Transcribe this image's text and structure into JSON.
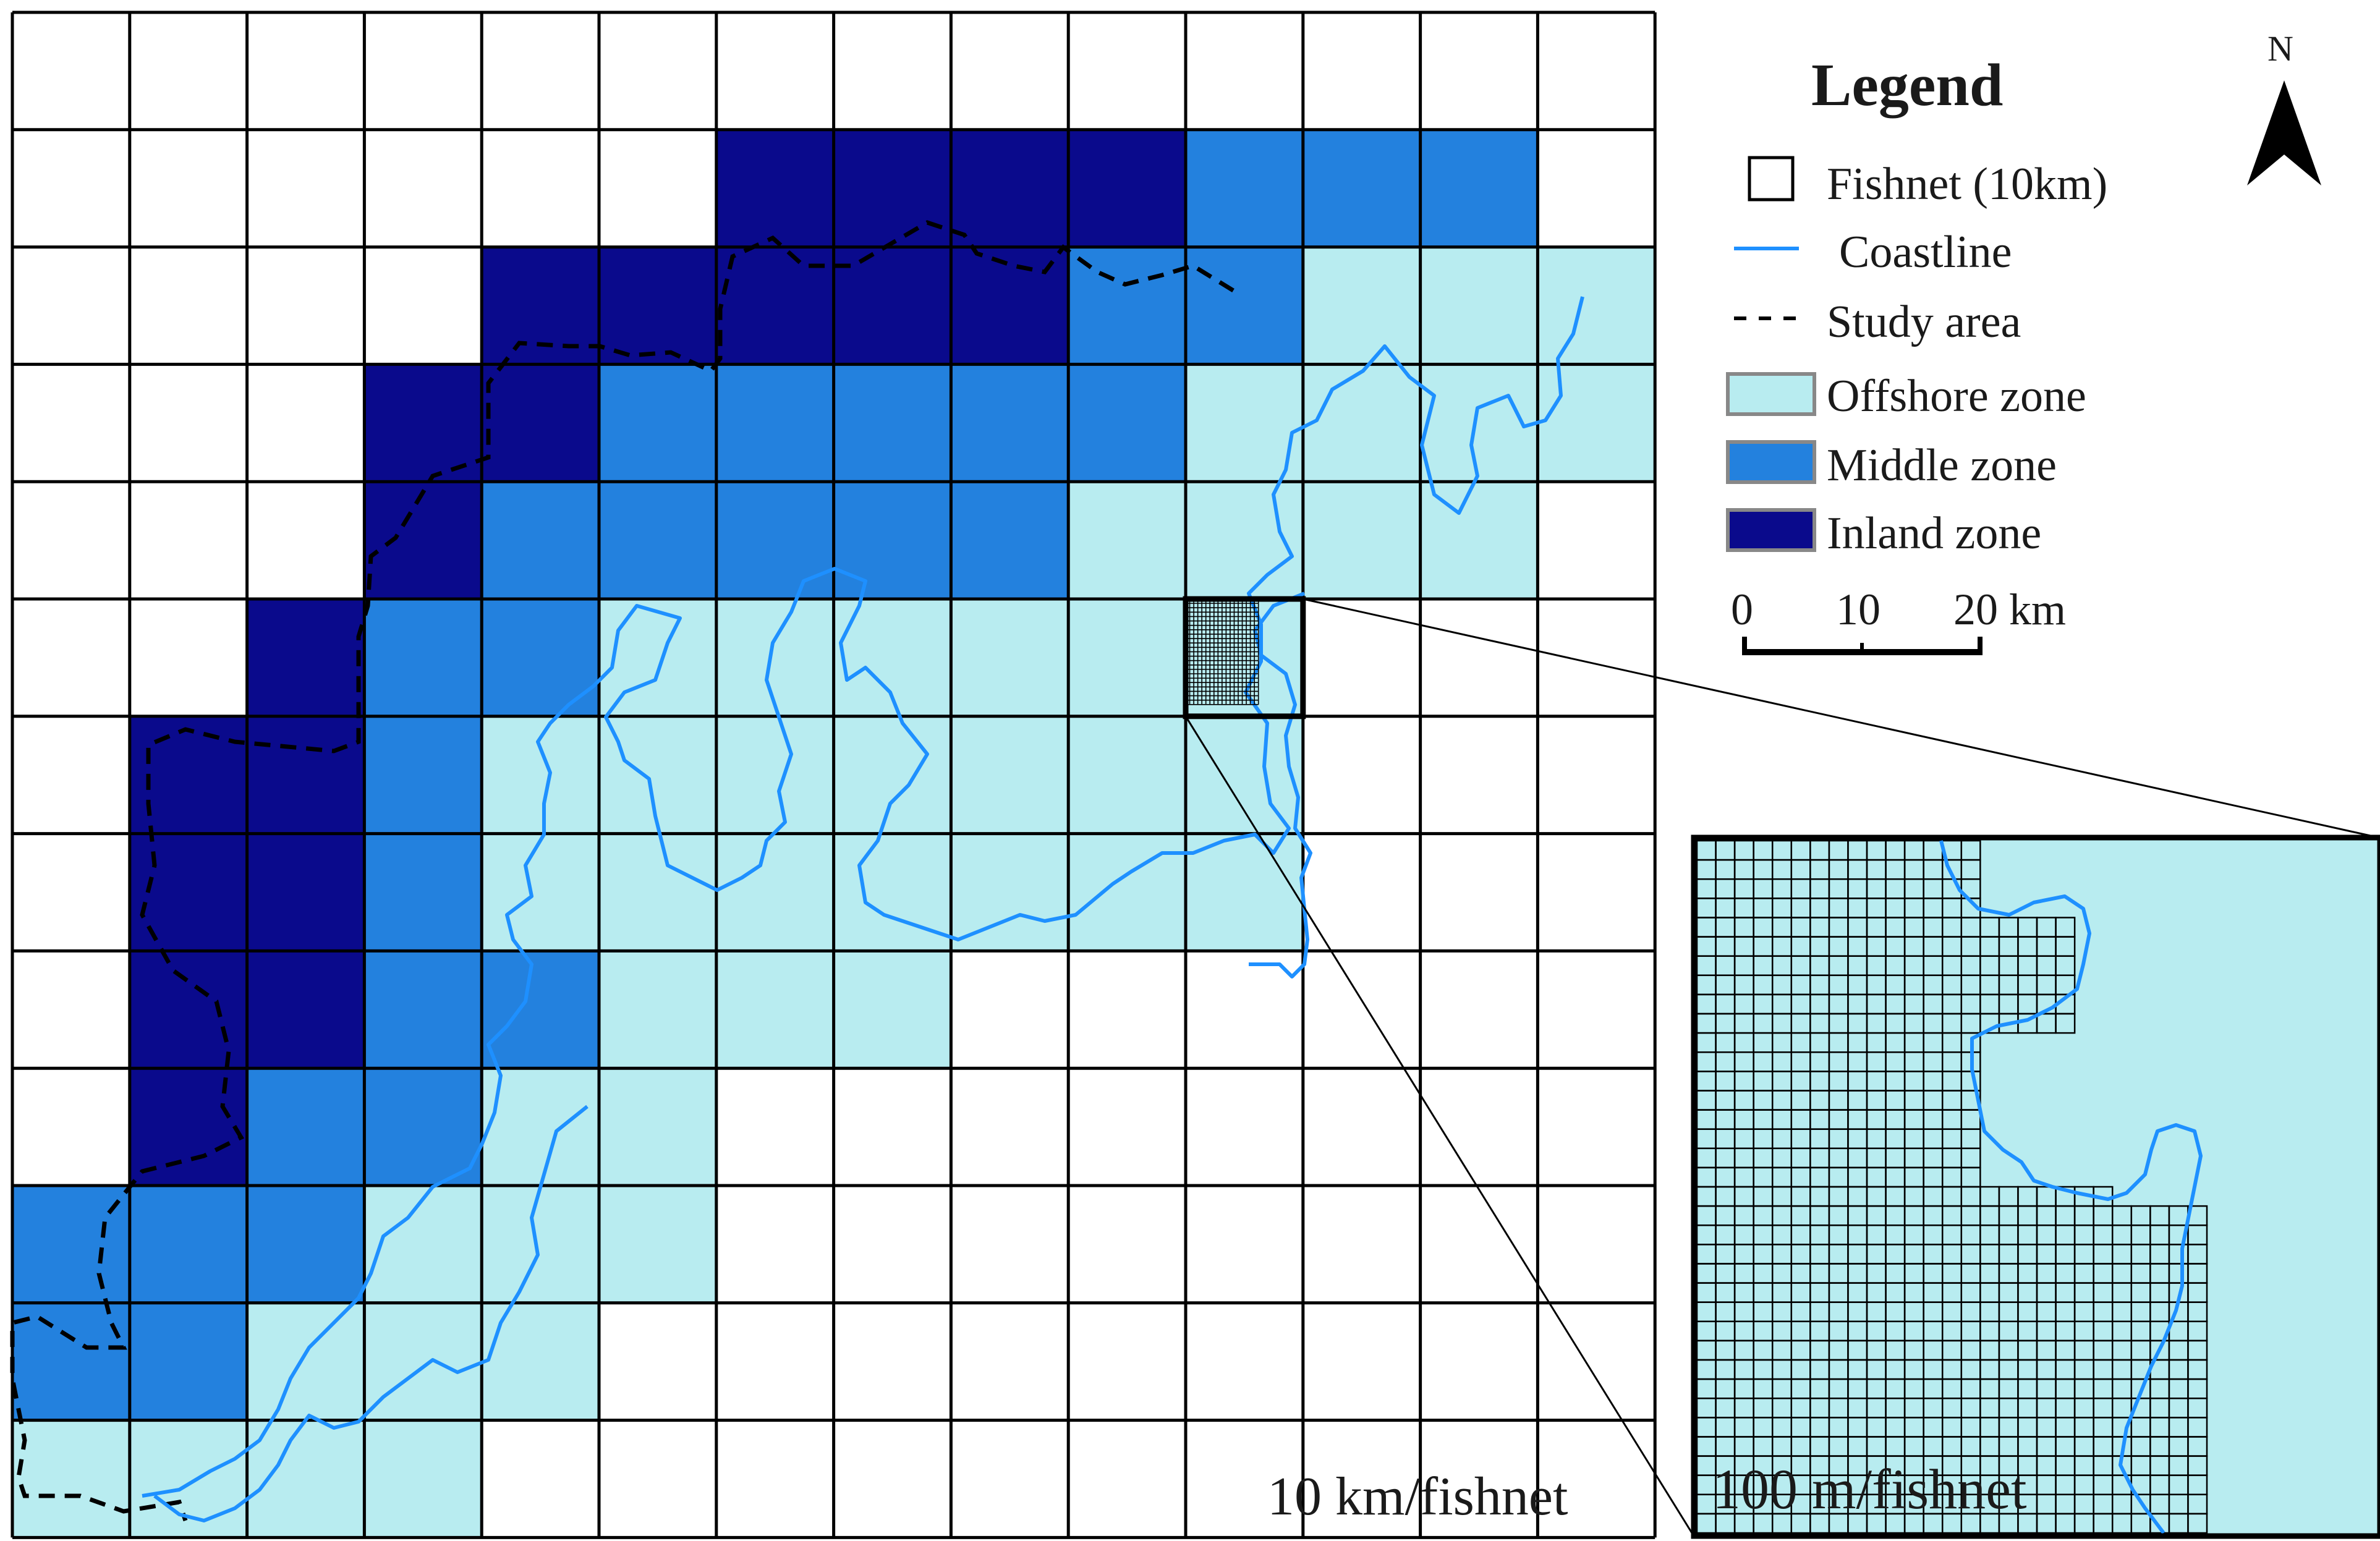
{
  "colors": {
    "offshore": "#b8ecf0",
    "middle": "#2381de",
    "inland": "#0a0a8c",
    "coastline": "#1e90ff",
    "grid": "#000000",
    "background": "#ffffff"
  },
  "main_map": {
    "grid_rows": 13,
    "grid_cols": 14,
    "zones": [
      "..............",
      "......IIIIMMM.",
      "....IIIIIMMOOO",
      "...IIMMMMMOOOO",
      "...IMMMMMOOOO.",
      "..IMMOOOOOH...",
      ".IIMOOOOOOO...",
      ".IIMOOOOOOO...",
      ".IIMMOOO......",
      ".IMMOO........",
      "MMMOOO........",
      "MMOOO.........",
      "OOOO.........."
    ],
    "scale_label": "10 km/fishnet"
  },
  "inset": {
    "grid_rows": 36,
    "grid_cols": 36,
    "fill_color": "#b8ecf0",
    "scale_label": "100 m/fishnet"
  },
  "legend": {
    "title": "Legend",
    "items": [
      {
        "key": "fishnet",
        "label": "Fishnet (10km)"
      },
      {
        "key": "coastline",
        "label": "Coastline"
      },
      {
        "key": "study_area",
        "label": "Study area"
      },
      {
        "key": "offshore",
        "label": "Offshore zone"
      },
      {
        "key": "middle",
        "label": "Middle zone"
      },
      {
        "key": "inland",
        "label": "Inland zone"
      }
    ]
  },
  "scale_bar": {
    "ticks": [
      "0",
      "10",
      "20 km"
    ]
  },
  "north_arrow": {
    "label": "N",
    "icon": "north-arrow-icon"
  }
}
